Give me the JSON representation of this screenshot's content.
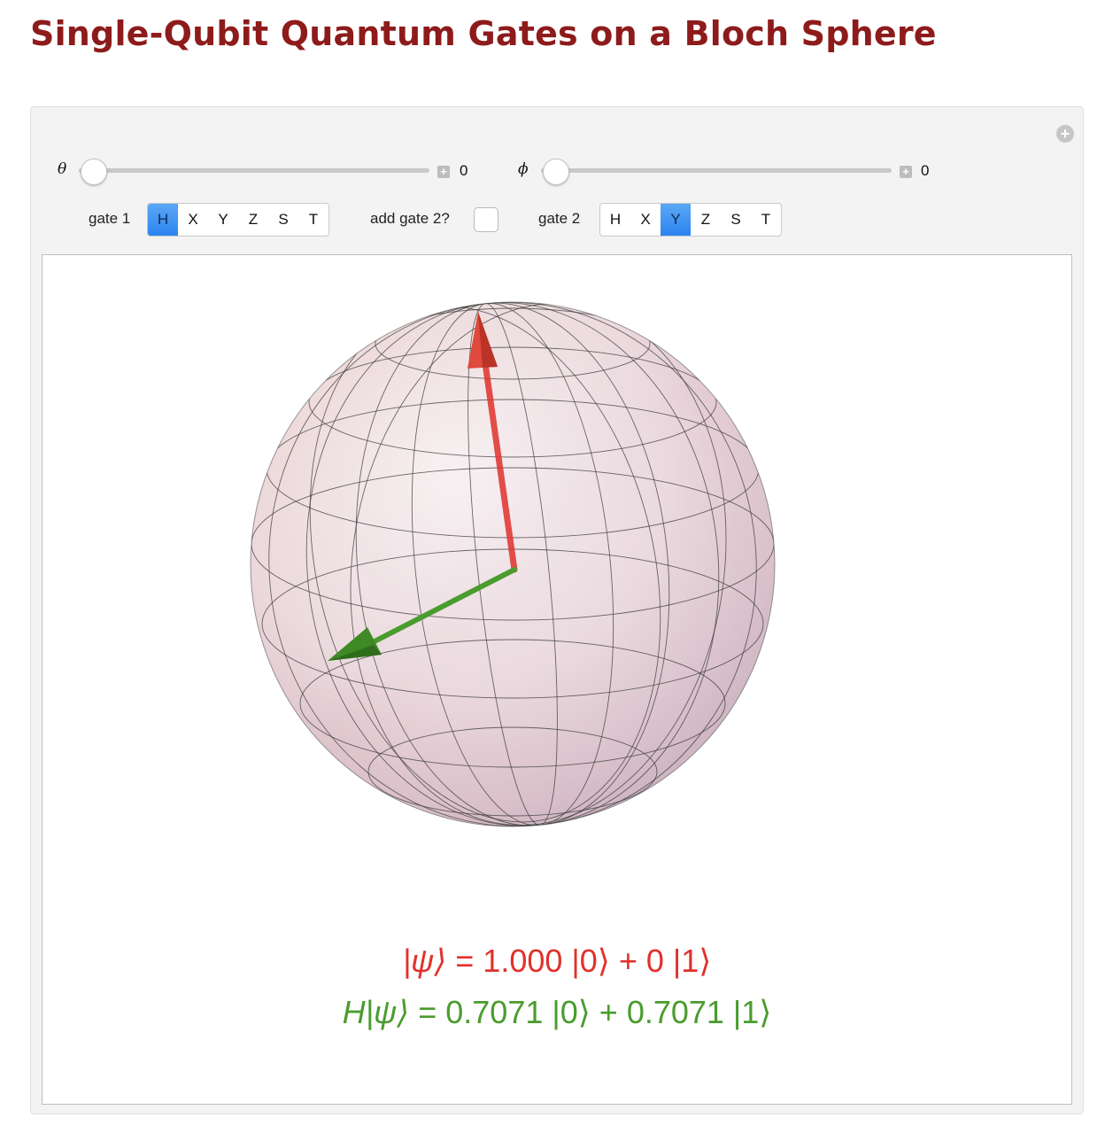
{
  "title": "Single-Qubit Quantum Gates on a Bloch Sphere",
  "controls": {
    "theta": {
      "label": "θ",
      "value": "0"
    },
    "phi": {
      "label": "ϕ",
      "value": "0"
    },
    "gate1": {
      "label": "gate 1",
      "options": [
        "H",
        "X",
        "Y",
        "Z",
        "S",
        "T"
      ],
      "selected": "H"
    },
    "add_gate2": {
      "label": "add gate 2?",
      "checked": false
    },
    "gate2": {
      "label": "gate 2",
      "options": [
        "H",
        "X",
        "Y",
        "Z",
        "S",
        "T"
      ],
      "selected": "Y"
    }
  },
  "output": {
    "state_before": {
      "lhs": "|ψ⟩",
      "rhs": " = 1.000 |0⟩ + 0 |1⟩"
    },
    "state_after": {
      "operator": "H",
      "lhs": "|ψ⟩",
      "rhs": " = 0.7071 |0⟩ + 0.7071 |1⟩"
    }
  },
  "icons": {
    "plus": "plus-circle-icon",
    "slider_increment": "plus-square-icon"
  },
  "colors": {
    "title": "#8e1b1b",
    "initial_state_vector": "#e0322c",
    "transformed_state_vector": "#4a9c2e",
    "selected_button": "#2c84ef"
  }
}
